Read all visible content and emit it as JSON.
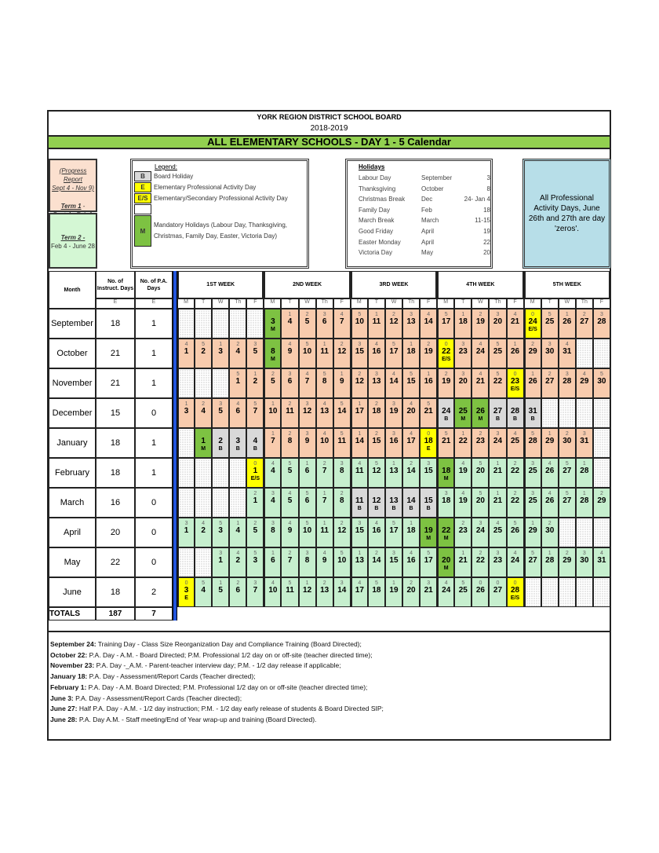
{
  "header": {
    "org": "YORK REGION DISTRICT SCHOOL BOARD",
    "year": "2018-2019",
    "title": "ALL ELEMENTARY SCHOOLS - DAY 1 - 5 Calendar"
  },
  "terms": {
    "progress": "(Progress Report",
    "progress_dates": "Sept 4 - Nov 9)",
    "term1": "Term 1",
    "term1_sep": " -",
    "term1_dates": "Sept 4 - Feb 1",
    "term2": "Term 2 -",
    "term2_dates": "Feb 4 - June 28"
  },
  "legend": {
    "title": "Legend:",
    "items": [
      {
        "code": "B",
        "label": "Board Holiday",
        "color": "#d9d9d9"
      },
      {
        "code": "E",
        "label": "Elementary Professional Activity Day",
        "color": "#ffff00"
      },
      {
        "code": "E/S",
        "label": "Elementary/Secondary Professional Activity Day",
        "color": "#ffff00"
      },
      {
        "code": "",
        "label": "",
        "color": "#ffffff"
      },
      {
        "code": "M",
        "label": "Mandatory Holidays (Labour Day, Thanksgiving, Christmas, Family Day, Easter, Victoria Day)",
        "color": "#7dc242"
      }
    ]
  },
  "holidays": {
    "title": "Holidays",
    "items": [
      {
        "name": "Labour Day",
        "month": "September",
        "day": "3"
      },
      {
        "name": "Thanksgiving",
        "month": "October",
        "day": "8"
      },
      {
        "name": "Christmas Break",
        "month": "Dec",
        "day": "24- Jan 4"
      },
      {
        "name": "Family Day",
        "month": "Feb",
        "day": "18"
      },
      {
        "name": "March Break",
        "month": "March",
        "day": "11-15"
      },
      {
        "name": "Good Friday",
        "month": "April",
        "day": "19"
      },
      {
        "name": "Easter Monday",
        "month": "April",
        "day": "22"
      },
      {
        "name": "Victoria Day",
        "month": "May",
        "day": "20"
      }
    ]
  },
  "note": "All Professional Activity Days, June 26th and 27th are day 'zeros'.",
  "colors": {
    "term1": "#f8cbad",
    "term2": "#c6efce",
    "B": "#d9d9d9",
    "M": "#7dc242",
    "E": "#ffff00",
    "E/S": "#ffff00",
    "title_bar": "#92d050",
    "note_box": "#b7dee8"
  },
  "table": {
    "col_month": "Month",
    "col_instr": "No. of Instruct. Days",
    "col_pa": "No. of P.A. Days",
    "sub_instr": "E",
    "sub_pa": "E",
    "weeks": [
      "1ST WEEK",
      "2ND WEEK",
      "3RD WEEK",
      "4TH WEEK",
      "5TH WEEK"
    ],
    "days": [
      "M",
      "T",
      "W",
      "Th",
      "F"
    ],
    "months": [
      {
        "name": "September",
        "instr": "18",
        "pa": "1",
        "term": "term1",
        "cells": [
          "",
          "",
          "",
          "",
          "",
          "|3|M",
          "1|4",
          "2|5",
          "3|6",
          "4|7",
          "5|10",
          "1|11",
          "2|12",
          "3|13",
          "4|14",
          "5|17",
          "1|18",
          "2|19",
          "3|20",
          "4|21",
          "0|24|E/S",
          "5|25",
          "1|26",
          "2|27",
          "3|28"
        ]
      },
      {
        "name": "October",
        "instr": "21",
        "pa": "1",
        "term": "term1",
        "cells": [
          "4|1",
          "5|2",
          "1|3",
          "2|4",
          "3|5",
          "|8|M",
          "4|9",
          "5|10",
          "1|11",
          "2|12",
          "3|15",
          "4|16",
          "5|17",
          "1|18",
          "2|19",
          "0|22|E/S",
          "3|23",
          "4|24",
          "5|25",
          "1|26",
          "2|29",
          "3|30",
          "4|31",
          "",
          ""
        ]
      },
      {
        "name": "November",
        "instr": "21",
        "pa": "1",
        "term": "term1",
        "cells": [
          "",
          "",
          "",
          "5|1",
          "1|2",
          "2|5",
          "3|6",
          "4|7",
          "5|8",
          "1|9",
          "2|12",
          "3|13",
          "4|14",
          "5|15",
          "1|16",
          "2|19",
          "3|20",
          "4|21",
          "5|22",
          "0|23|E/S",
          "1|26",
          "2|27",
          "3|28",
          "4|29",
          "5|30"
        ]
      },
      {
        "name": "December",
        "instr": "15",
        "pa": "0",
        "term": "term1",
        "cells": [
          "1|3",
          "2|4",
          "3|5",
          "4|6",
          "5|7",
          "1|10",
          "2|11",
          "3|12",
          "4|13",
          "5|14",
          "1|17",
          "2|18",
          "3|19",
          "4|20",
          "5|21",
          "|24|B",
          "|25|M",
          "|26|M",
          "|27|B",
          "|28|B",
          "|31|B",
          "",
          "",
          "",
          ""
        ]
      },
      {
        "name": "January",
        "instr": "18",
        "pa": "1",
        "term": "term1",
        "cells": [
          "",
          "|1|M",
          "|2|B",
          "|3|B",
          "|4|B",
          "1|7",
          "2|8",
          "3|9",
          "4|10",
          "5|11",
          "1|14",
          "2|15",
          "3|16",
          "4|17",
          "0|18|E",
          "5|21",
          "1|22",
          "2|23",
          "3|24",
          "4|25",
          "5|28",
          "1|29",
          "2|30",
          "3|31",
          ""
        ]
      },
      {
        "name": "February",
        "instr": "18",
        "pa": "1",
        "term": "term2",
        "cells": [
          "",
          "",
          "",
          "",
          "0|1|E/S",
          "4|4",
          "5|5",
          "1|6",
          "2|7",
          "3|8",
          "4|11",
          "5|12",
          "1|13",
          "2|14",
          "3|15",
          "|18|M",
          "4|19",
          "5|20",
          "1|21",
          "2|22",
          "3|25",
          "4|26",
          "5|27",
          "1|28",
          ""
        ]
      },
      {
        "name": "March",
        "instr": "16",
        "pa": "0",
        "term": "term2",
        "cells": [
          "",
          "",
          "",
          "",
          "2|1",
          "3|4",
          "4|5",
          "5|6",
          "1|7",
          "2|8",
          "|11|B",
          "|12|B",
          "|13|B",
          "|14|B",
          "|15|B",
          "3|18",
          "4|19",
          "5|20",
          "1|21",
          "2|22",
          "3|25",
          "4|26",
          "5|27",
          "1|28",
          "2|29"
        ]
      },
      {
        "name": "April",
        "instr": "20",
        "pa": "0",
        "term": "term2",
        "cells": [
          "3|1",
          "4|2",
          "5|3",
          "1|4",
          "2|5",
          "3|8",
          "4|9",
          "5|10",
          "1|11",
          "2|12",
          "3|15",
          "4|16",
          "5|17",
          "1|18",
          "|19|M",
          "|22|M",
          "2|23",
          "3|24",
          "4|25",
          "5|26",
          "1|29",
          "2|30",
          "",
          "",
          ""
        ]
      },
      {
        "name": "May",
        "instr": "22",
        "pa": "0",
        "term": "term2",
        "cells": [
          "",
          "",
          "3|1",
          "4|2",
          "5|3",
          "1|6",
          "2|7",
          "3|8",
          "4|9",
          "5|10",
          "1|13",
          "2|14",
          "3|15",
          "4|16",
          "5|17",
          "|20|M",
          "1|21",
          "2|22",
          "3|23",
          "4|24",
          "5|27",
          "1|28",
          "2|29",
          "3|30",
          "4|31"
        ]
      },
      {
        "name": "June",
        "instr": "18",
        "pa": "2",
        "term": "term2",
        "cells": [
          "0|3|E",
          "5|4",
          "1|5",
          "2|6",
          "3|7",
          "4|10",
          "5|11",
          "1|12",
          "2|13",
          "3|14",
          "4|17",
          "5|18",
          "1|19",
          "2|20",
          "3|21",
          "4|24",
          "5|25",
          "0|26",
          "0|27",
          "0|28|E/S",
          "",
          "",
          "",
          "",
          ""
        ]
      }
    ],
    "totals": {
      "label": "TOTALS",
      "instr": "187",
      "pa": "7"
    }
  },
  "notes": [
    {
      "date": "September 24:",
      "text": " Training Day - Class Size Reorganization Day  and Compliance Training (Board Directed);"
    },
    {
      "date": "October 22:",
      "text": "  P.A. Day - A.M. - Board Directed; P.M. Professional 1/2 day on or off-site (teacher directed time);"
    },
    {
      "date": "November 23:",
      "text": " P.A. Day -_A.M. - Parent-teacher interview day; P.M. - 1/2 day release if applicable;"
    },
    {
      "date": "January 18:",
      "text": "  P.A. Day - Assessment/Report Cards (Teacher directed);"
    },
    {
      "date": "February 1:",
      "text": " P.A. Day - A.M. Board Directed; P.M. Professional 1/2 day on or off-site (teacher directed time);"
    },
    {
      "date": "June 3:",
      "text": " P.A. Day - Assessment/Report Cards (Teacher directed);"
    },
    {
      "date": "June 27:",
      "text": " Half P.A. Day -  A.M. - 1/2 day instruction; P.M. - 1/2 day early release of students & Board Directed SIP;"
    },
    {
      "date": "June 28:",
      "text": " P.A. Day A.M. - Staff meeting/End of Year wrap-up and training (Board Directed)."
    }
  ]
}
